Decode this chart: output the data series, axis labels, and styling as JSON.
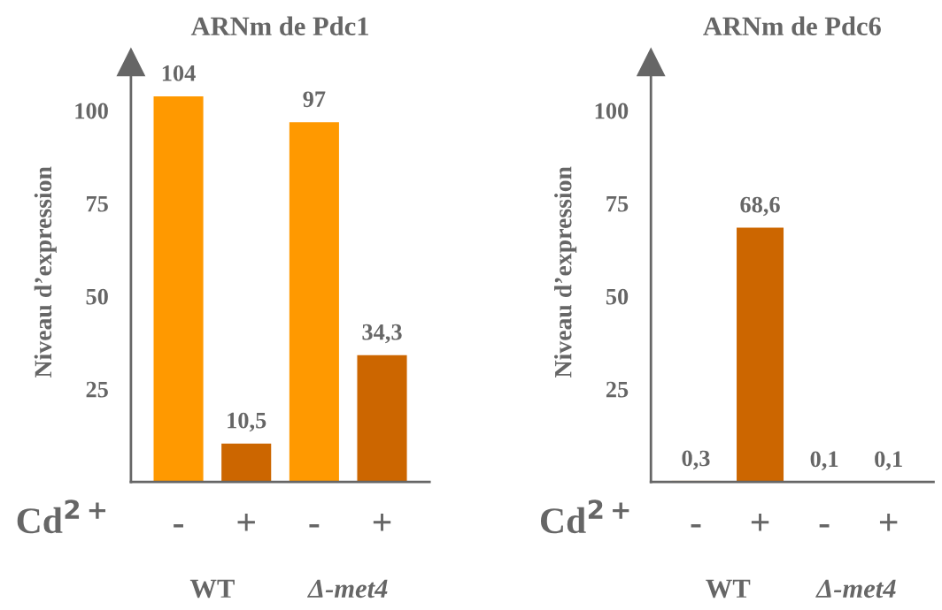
{
  "chart_data": [
    {
      "type": "bar",
      "title": "ARNm de Pdc1",
      "ylabel": "Niveau d’expression",
      "xlabel": "Cd$^{2+}$",
      "categories": [
        "-",
        "+",
        "-",
        "+"
      ],
      "values": [
        104,
        10.5,
        97,
        34.3
      ],
      "value_labels": [
        "104",
        "10,5",
        "97",
        "34,3"
      ],
      "colors": [
        "#ff9900",
        "#cc6600",
        "#ff9900",
        "#cc6600"
      ],
      "ylim": [
        0,
        113
      ],
      "yticks": [
        25,
        50,
        75,
        100
      ],
      "grid": false,
      "annotations": [
        "WT",
        "Δ-met4"
      ]
    },
    {
      "type": "bar",
      "title": "ARNm de Pdc6",
      "ylabel": "Niveau d’expression",
      "xlabel": "Cd$^{2+}$",
      "categories": [
        "-",
        "+",
        "-",
        "+"
      ],
      "values": [
        0.3,
        68.6,
        0.1,
        0.1
      ],
      "value_labels": [
        "0,3",
        "68,6",
        "0,1",
        "0,1"
      ],
      "colors": [
        "#ff9900",
        "#cc6600",
        "#000000",
        "#000000"
      ],
      "ylim": [
        0,
        113
      ],
      "yticks": [
        25,
        50,
        75,
        100
      ],
      "grid": false,
      "annotations": [
        "WT",
        "Δ-met4"
      ]
    }
  ]
}
